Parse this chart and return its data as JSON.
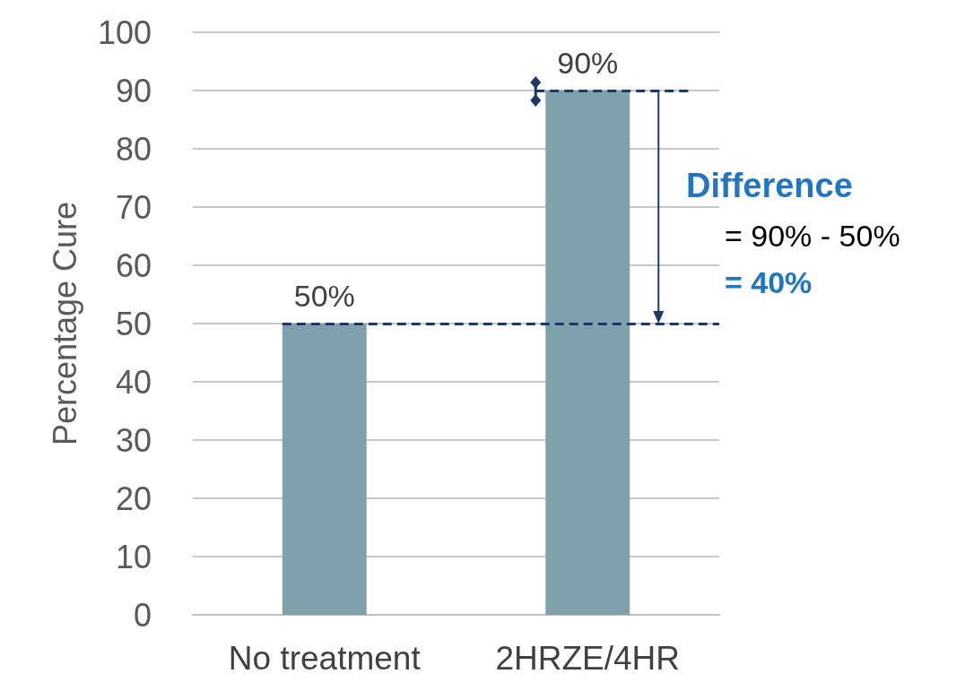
{
  "chart_data": {
    "type": "bar",
    "categories": [
      "No treatment",
      "2HRZE/4HR"
    ],
    "values": [
      50,
      90
    ],
    "color": "#7fa1ab",
    "value_labels": [
      "50%",
      "90%"
    ],
    "ylabel": "Percentage Cure",
    "ylim": [
      0,
      100
    ],
    "yticks": [
      0,
      10,
      20,
      30,
      40,
      50,
      60,
      70,
      80,
      90,
      100
    ],
    "grid": "y",
    "ref_lines": [
      {
        "axis": "y",
        "value": 50,
        "color": "#1f3864",
        "line_style": "dashed"
      },
      {
        "axis": "y",
        "value": 90,
        "color": "#1f3864",
        "line_style": "dashed"
      }
    ],
    "annotations": [
      "Difference",
      "= 90% - 50%",
      "= 40%"
    ]
  }
}
